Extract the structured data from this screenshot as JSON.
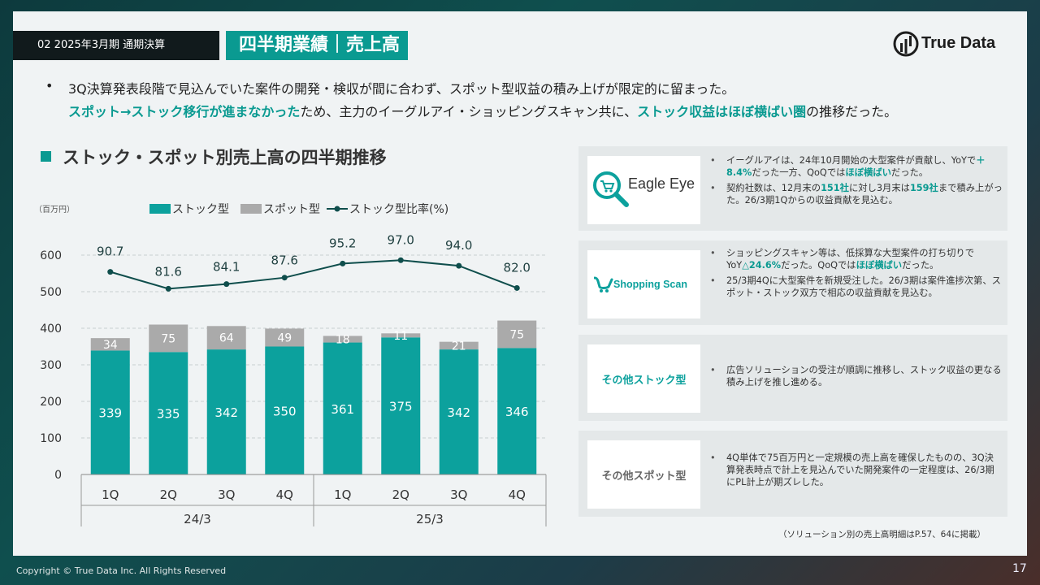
{
  "header": {
    "section_tag": "02 2025年3月期 通期決算",
    "title": "四半期業績｜売上高",
    "logo_text": "True Data"
  },
  "summary": {
    "line1": "3Q決算発表段階で見込んでいた案件の開発・検収が間に合わず、スポット型収益の積み上げが限定的に留まった。",
    "line2_hl1": "スポット→ストック移行が進まなかった",
    "line2_mid": "ため、主力のイーグルアイ・ショッピングスキャン共に、",
    "line2_hl2": "ストック収益はほぼ横ばい圏",
    "line2_end": "の推移だった。"
  },
  "chart_title": "ストック・スポット別売上高の四半期推移",
  "chart_data": {
    "type": "bar",
    "unit_label": "（百万円）",
    "categories": [
      "1Q",
      "2Q",
      "3Q",
      "4Q",
      "1Q",
      "2Q",
      "3Q",
      "4Q"
    ],
    "groups": [
      {
        "label": "24/3",
        "count": 4
      },
      {
        "label": "25/3",
        "count": 4
      }
    ],
    "series": [
      {
        "name": "ストック型",
        "kind": "bar",
        "color": "#0ca19d",
        "values": [
          339,
          335,
          342,
          350,
          361,
          375,
          342,
          346
        ]
      },
      {
        "name": "スポット型",
        "kind": "bar",
        "color": "#aaaaaa",
        "values": [
          34,
          75,
          64,
          49,
          18,
          11,
          21,
          75
        ]
      },
      {
        "name": "ストック型比率(%)",
        "kind": "line",
        "color": "#0f4e4c",
        "values": [
          90.7,
          81.6,
          84.1,
          87.6,
          95.2,
          97.0,
          94.0,
          82.0
        ]
      }
    ],
    "yticks": [
      0,
      100,
      200,
      300,
      400,
      500,
      600
    ],
    "ylim": [
      0,
      600
    ],
    "grid": true,
    "legend": "top"
  },
  "panels": {
    "eagle": {
      "logo_text": "Eagle Eye",
      "b1_a": "イーグルアイは、24年10月開始の大型案件が貢献し、YoYで",
      "b1_hl1": "＋8.4%",
      "b1_b": "だった一方、QoQでは",
      "b1_hl2": "ほぼ横ばい",
      "b1_c": "だった。",
      "b2_a": "契約社数は、12月末の",
      "b2_hl1": "151社",
      "b2_b": "に対し3月末は",
      "b2_hl2": "159社",
      "b2_c": "まで積み上がった。26/3期1Qからの収益貢献を見込む。"
    },
    "shopping": {
      "logo_text": "Shopping Scan",
      "b1_a": "ショッピングスキャン等は、低採算な大型案件の打ち切りでYoY",
      "b1_hl1": "△24.6%",
      "b1_b": "だった。QoQでは",
      "b1_hl2": "ほぼ横ばい",
      "b1_c": "だった。",
      "b2": "25/3期4Qに大型案件を新規受注した。26/3期は案件進捗次第、スポット・ストック双方で相応の収益貢献を見込む。"
    },
    "other_stock": {
      "label": "その他ストック型",
      "b1": "広告ソリューションの受注が順調に推移し、ストック収益の更なる積み上げを推し進める。"
    },
    "other_spot": {
      "label": "その他スポット型",
      "b1": "4Q単体で75百万円と一定規模の売上高を確保したものの、3Q決算発表時点で計上を見込んでいた開発案件の一定程度は、26/3期にPL計上が期ズレした。"
    }
  },
  "footnote": "（ソリューション別の売上高明細はP.57、64に掲載）",
  "copyright": "Copyright © True Data Inc. All Rights Reserved",
  "page_number": "17"
}
